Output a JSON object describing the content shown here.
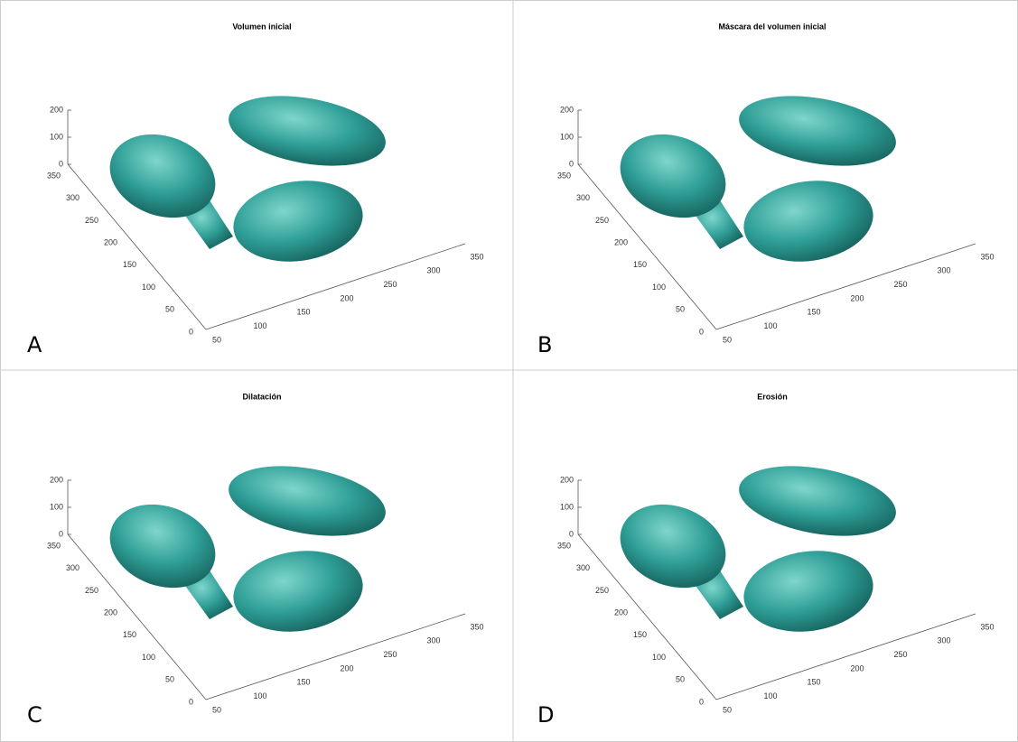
{
  "panels": [
    {
      "letter": "A",
      "title": "Volumen inicial",
      "zticks": [
        0,
        100,
        200
      ],
      "yticks": [
        350,
        300,
        250,
        200,
        150,
        100,
        50,
        0
      ],
      "xticks": [
        50,
        100,
        150,
        200,
        250,
        300,
        350
      ]
    },
    {
      "letter": "B",
      "title": "Máscara del volumen inicial",
      "zticks": [
        0,
        100,
        200
      ],
      "yticks": [
        350,
        300,
        250,
        200,
        150,
        100,
        50,
        0
      ],
      "xticks": [
        50,
        100,
        150,
        200,
        250,
        300,
        350
      ]
    },
    {
      "letter": "C",
      "title": "Dilatación",
      "zticks": [
        0,
        100,
        200
      ],
      "yticks": [
        350,
        300,
        250,
        200,
        150,
        100,
        50,
        0
      ],
      "xticks": [
        50,
        100,
        150,
        200,
        250,
        300,
        350
      ]
    },
    {
      "letter": "D",
      "title": "Erosión",
      "zticks": [
        0,
        100,
        200
      ],
      "yticks": [
        350,
        300,
        250,
        200,
        150,
        100,
        50,
        0
      ],
      "xticks": [
        50,
        100,
        150,
        200,
        250,
        300,
        350
      ]
    }
  ]
}
